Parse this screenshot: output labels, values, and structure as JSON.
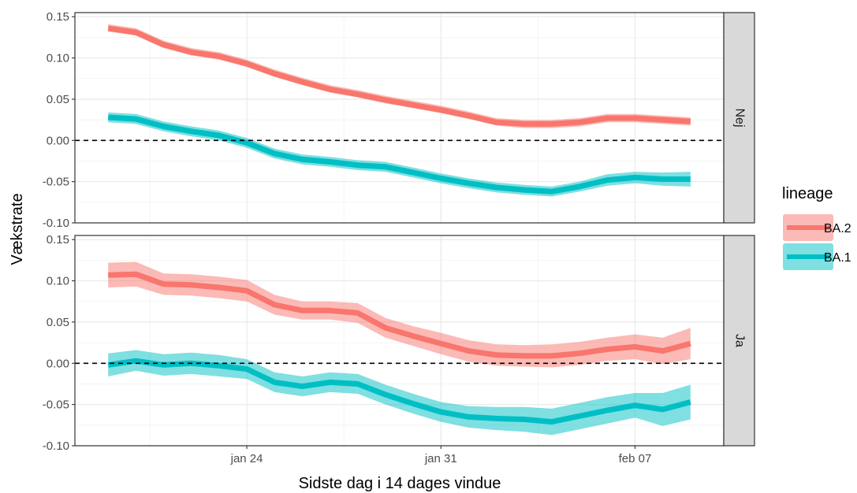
{
  "chart_data": {
    "type": "line",
    "xlabel": "Sidste dag i 14 dages vindue",
    "ylabel": "Vækstrate",
    "x_dates": [
      "2022-01-19",
      "2022-01-20",
      "2022-01-21",
      "2022-01-22",
      "2022-01-23",
      "2022-01-24",
      "2022-01-25",
      "2022-01-26",
      "2022-01-27",
      "2022-01-28",
      "2022-01-29",
      "2022-01-30",
      "2022-01-31",
      "2022-02-01",
      "2022-02-02",
      "2022-02-03",
      "2022-02-04",
      "2022-02-05",
      "2022-02-06",
      "2022-02-07",
      "2022-02-08",
      "2022-02-09"
    ],
    "x_ticks": [
      {
        "date": "2022-01-24",
        "label": "jan 24"
      },
      {
        "date": "2022-01-31",
        "label": "jan 31"
      },
      {
        "date": "2022-02-07",
        "label": "feb 07"
      }
    ],
    "ylim": [
      -0.1,
      0.155
    ],
    "y_ticks": [
      {
        "value": -0.1,
        "label": "-0.10"
      },
      {
        "value": -0.05,
        "label": "-0.05"
      },
      {
        "value": 0.0,
        "label": "0.00"
      },
      {
        "value": 0.05,
        "label": "0.05"
      },
      {
        "value": 0.1,
        "label": "0.10"
      },
      {
        "value": 0.15,
        "label": "0.15"
      }
    ],
    "reference_line_y": 0,
    "grid": true,
    "legend": {
      "title": "lineage",
      "position": "right",
      "entries": [
        "BA.2",
        "BA.1"
      ]
    },
    "colors": {
      "BA.2": "#F8766D",
      "BA.1": "#00BFC4"
    },
    "facets": [
      {
        "label": "Nej",
        "series": [
          {
            "name": "BA.2",
            "values": [
              0.136,
              0.131,
              0.116,
              0.107,
              0.102,
              0.093,
              0.081,
              0.071,
              0.062,
              0.056,
              0.049,
              0.043,
              0.037,
              0.03,
              0.022,
              0.02,
              0.02,
              0.022,
              0.027,
              0.027,
              0.025,
              0.023
            ],
            "lower": [
              0.132,
              0.127,
              0.112,
              0.103,
              0.098,
              0.089,
              0.077,
              0.067,
              0.058,
              0.052,
              0.045,
              0.039,
              0.033,
              0.026,
              0.018,
              0.015,
              0.015,
              0.017,
              0.022,
              0.022,
              0.02,
              0.018
            ],
            "upper": [
              0.141,
              0.136,
              0.121,
              0.112,
              0.107,
              0.098,
              0.086,
              0.076,
              0.067,
              0.061,
              0.054,
              0.048,
              0.042,
              0.035,
              0.027,
              0.025,
              0.025,
              0.027,
              0.032,
              0.032,
              0.03,
              0.028
            ]
          },
          {
            "name": "BA.1",
            "values": [
              0.028,
              0.026,
              0.017,
              0.011,
              0.006,
              -0.003,
              -0.016,
              -0.023,
              -0.026,
              -0.03,
              -0.032,
              -0.039,
              -0.046,
              -0.052,
              -0.057,
              -0.06,
              -0.062,
              -0.056,
              -0.048,
              -0.045,
              -0.047,
              -0.047
            ],
            "lower": [
              0.022,
              0.02,
              0.011,
              0.005,
              0.0,
              -0.009,
              -0.022,
              -0.029,
              -0.032,
              -0.036,
              -0.038,
              -0.045,
              -0.052,
              -0.058,
              -0.063,
              -0.066,
              -0.068,
              -0.062,
              -0.055,
              -0.052,
              -0.055,
              -0.056
            ],
            "upper": [
              0.034,
              0.032,
              0.023,
              0.017,
              0.012,
              0.003,
              -0.01,
              -0.017,
              -0.02,
              -0.024,
              -0.026,
              -0.033,
              -0.04,
              -0.046,
              -0.051,
              -0.054,
              -0.056,
              -0.05,
              -0.041,
              -0.038,
              -0.039,
              -0.038
            ]
          }
        ]
      },
      {
        "label": "Ja",
        "series": [
          {
            "name": "BA.2",
            "values": [
              0.107,
              0.108,
              0.096,
              0.095,
              0.092,
              0.088,
              0.071,
              0.064,
              0.064,
              0.061,
              0.043,
              0.033,
              0.024,
              0.015,
              0.01,
              0.009,
              0.009,
              0.012,
              0.017,
              0.02,
              0.015,
              0.024
            ],
            "lower": [
              0.092,
              0.093,
              0.083,
              0.082,
              0.079,
              0.075,
              0.059,
              0.053,
              0.053,
              0.049,
              0.031,
              0.021,
              0.011,
              0.002,
              -0.003,
              -0.004,
              -0.005,
              -0.002,
              0.003,
              0.005,
              -0.001,
              0.005
            ],
            "upper": [
              0.122,
              0.123,
              0.109,
              0.108,
              0.105,
              0.101,
              0.083,
              0.075,
              0.075,
              0.073,
              0.055,
              0.045,
              0.037,
              0.028,
              0.023,
              0.022,
              0.023,
              0.026,
              0.031,
              0.035,
              0.031,
              0.043
            ]
          },
          {
            "name": "BA.1",
            "values": [
              -0.002,
              0.003,
              -0.002,
              0.0,
              -0.003,
              -0.007,
              -0.023,
              -0.028,
              -0.023,
              -0.025,
              -0.038,
              -0.049,
              -0.059,
              -0.065,
              -0.067,
              -0.068,
              -0.071,
              -0.064,
              -0.057,
              -0.051,
              -0.056,
              -0.047
            ],
            "lower": [
              -0.016,
              -0.009,
              -0.015,
              -0.013,
              -0.016,
              -0.019,
              -0.035,
              -0.04,
              -0.035,
              -0.037,
              -0.05,
              -0.061,
              -0.071,
              -0.078,
              -0.081,
              -0.083,
              -0.087,
              -0.08,
              -0.073,
              -0.066,
              -0.076,
              -0.068
            ],
            "upper": [
              0.012,
              0.016,
              0.011,
              0.013,
              0.01,
              0.005,
              -0.011,
              -0.016,
              -0.011,
              -0.013,
              -0.026,
              -0.037,
              -0.047,
              -0.052,
              -0.053,
              -0.053,
              -0.055,
              -0.048,
              -0.041,
              -0.036,
              -0.036,
              -0.026
            ]
          }
        ]
      }
    ]
  }
}
